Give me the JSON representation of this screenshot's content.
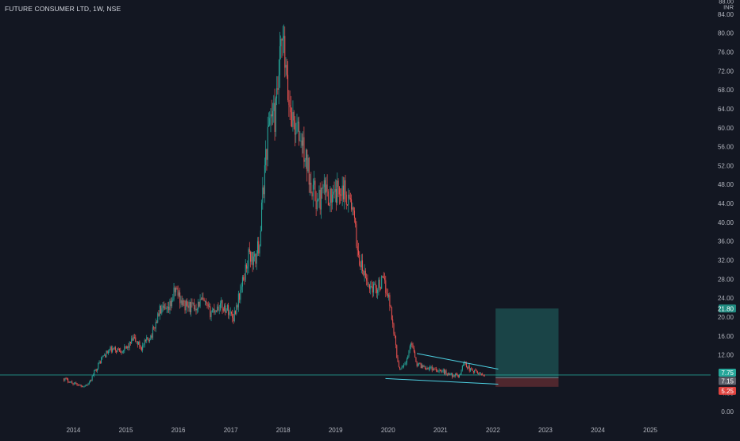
{
  "header": {
    "symbol": "FUTURE CONSUMER LTD",
    "interval": "1W",
    "exchange": "NSE",
    "title": "FUTURE CONSUMER LTD, 1W, NSE"
  },
  "colors": {
    "background": "#131722",
    "up": "#26a69a",
    "down": "#ef5350",
    "axis_text": "#b2b5be",
    "trendline": "#4dd0e1",
    "target_zone": "#1e5454",
    "stop_zone": "#5a2a30"
  },
  "labels": {
    "currency": "INR",
    "top_partial": "88.00",
    "target_price": "21.80",
    "current_price": "7.75",
    "entry_price": "7.15",
    "stop_price": "5.25"
  },
  "chart_data": {
    "type": "candlestick",
    "title": "FUTURE CONSUMER LTD, 1W, NSE",
    "currency": "INR",
    "x_ticks": [
      "2014",
      "2015",
      "2016",
      "2017",
      "2018",
      "2019",
      "2020",
      "2021",
      "2022",
      "2023",
      "2024",
      "2025"
    ],
    "y_ticks": [
      0,
      4,
      8,
      12,
      16,
      20,
      24,
      28,
      32,
      36,
      40,
      44,
      48,
      52,
      56,
      60,
      64,
      68,
      72,
      76,
      80,
      84
    ],
    "y_tick_labels": [
      "0.00",
      "4.00",
      "8.00",
      "12.00",
      "16.00",
      "20.00",
      "24.00",
      "28.00",
      "32.00",
      "36.00",
      "40.00",
      "44.00",
      "48.00",
      "52.00",
      "56.00",
      "60.00",
      "64.00",
      "68.00",
      "72.00",
      "76.00",
      "80.00",
      "84.00"
    ],
    "ylim": [
      -2,
      87
    ],
    "xlim": [
      2012.6,
      2026.15
    ],
    "price_path": [
      [
        2013.82,
        7.0
      ],
      [
        2014.0,
        6.0
      ],
      [
        2014.2,
        5.4
      ],
      [
        2014.3,
        5.9
      ],
      [
        2014.4,
        8.4
      ],
      [
        2014.55,
        11.5
      ],
      [
        2014.7,
        13.0
      ],
      [
        2015.0,
        13.2
      ],
      [
        2015.15,
        15.4
      ],
      [
        2015.3,
        13.5
      ],
      [
        2015.5,
        16.5
      ],
      [
        2015.65,
        21.5
      ],
      [
        2015.8,
        21.0
      ],
      [
        2015.95,
        26.0
      ],
      [
        2016.1,
        22.5
      ],
      [
        2016.3,
        22.0
      ],
      [
        2016.45,
        23.5
      ],
      [
        2016.6,
        21.0
      ],
      [
        2016.8,
        22.5
      ],
      [
        2016.95,
        21.5
      ],
      [
        2017.05,
        20.0
      ],
      [
        2017.2,
        26.0
      ],
      [
        2017.35,
        33.5
      ],
      [
        2017.45,
        31.5
      ],
      [
        2017.55,
        36.0
      ],
      [
        2017.65,
        52.0
      ],
      [
        2017.75,
        63.5
      ],
      [
        2017.85,
        62.0
      ],
      [
        2017.95,
        75.5
      ],
      [
        2018.0,
        78.0
      ],
      [
        2018.08,
        67.0
      ],
      [
        2018.2,
        61.0
      ],
      [
        2018.35,
        57.0
      ],
      [
        2018.5,
        50.0
      ],
      [
        2018.65,
        44.0
      ],
      [
        2018.8,
        47.0
      ],
      [
        2018.95,
        44.5
      ],
      [
        2019.1,
        48.0
      ],
      [
        2019.3,
        44.0
      ],
      [
        2019.45,
        32.0
      ],
      [
        2019.6,
        27.0
      ],
      [
        2019.75,
        26.0
      ],
      [
        2019.9,
        27.5
      ],
      [
        2020.0,
        25.0
      ],
      [
        2020.1,
        18.0
      ],
      [
        2020.2,
        9.0
      ],
      [
        2020.35,
        10.5
      ],
      [
        2020.45,
        15.0
      ],
      [
        2020.55,
        10.0
      ],
      [
        2020.7,
        9.5
      ],
      [
        2020.9,
        9.0
      ],
      [
        2021.05,
        8.5
      ],
      [
        2021.2,
        7.8
      ],
      [
        2021.35,
        7.5
      ],
      [
        2021.45,
        10.5
      ],
      [
        2021.55,
        9.0
      ],
      [
        2021.7,
        8.2
      ],
      [
        2021.85,
        7.75
      ]
    ],
    "annotations": {
      "falling_wedge": {
        "upper": [
          [
            2020.55,
            12.3
          ],
          [
            2022.1,
            9.0
          ]
        ],
        "lower": [
          [
            2019.95,
            7.0
          ],
          [
            2022.1,
            5.8
          ]
        ]
      },
      "position": {
        "type": "long",
        "x_start": 2022.05,
        "x_end": 2023.25,
        "entry": 7.15,
        "target": 21.8,
        "stop": 5.25
      },
      "current_price_line": 7.75
    }
  }
}
